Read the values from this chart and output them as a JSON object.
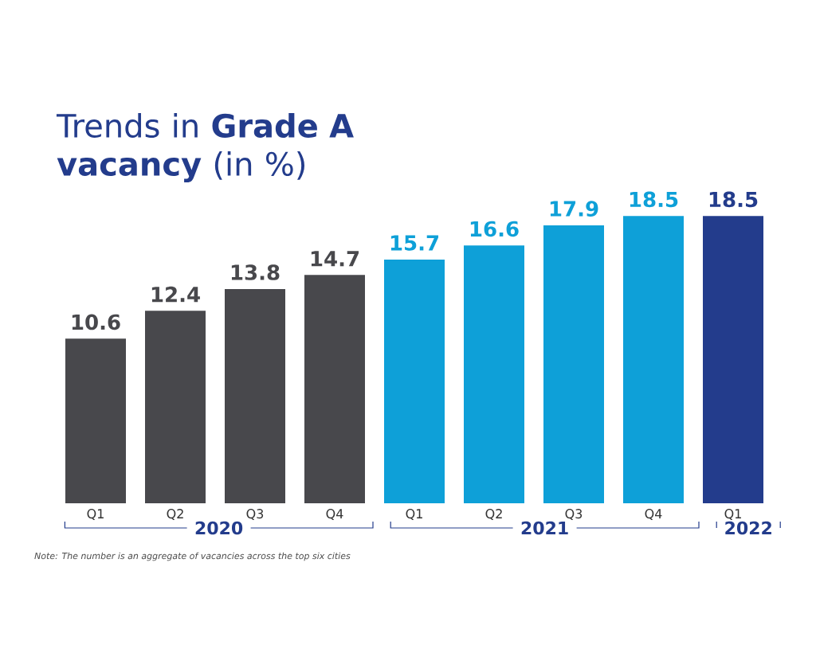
{
  "chart_data": {
    "type": "bar",
    "title": "Trends in **Grade A vacancy** (in %)",
    "categories": [
      "Q1",
      "Q2",
      "Q3",
      "Q4",
      "Q1",
      "Q2",
      "Q3",
      "Q4",
      "Q1"
    ],
    "values": [
      10.6,
      12.4,
      13.8,
      14.7,
      15.7,
      16.6,
      17.9,
      18.5,
      18.5
    ],
    "colors": [
      "#48484c",
      "#48484c",
      "#48484c",
      "#48484c",
      "#0ea0d8",
      "#0ea0d8",
      "#0ea0d8",
      "#0ea0d8",
      "#233c8c"
    ],
    "data_labels": true,
    "tick_labels": "x",
    "annotations": [
      "2020",
      "2021",
      "2022",
      "Note: The number is an aggregate of vacancies across the top six cities"
    ]
  }
}
